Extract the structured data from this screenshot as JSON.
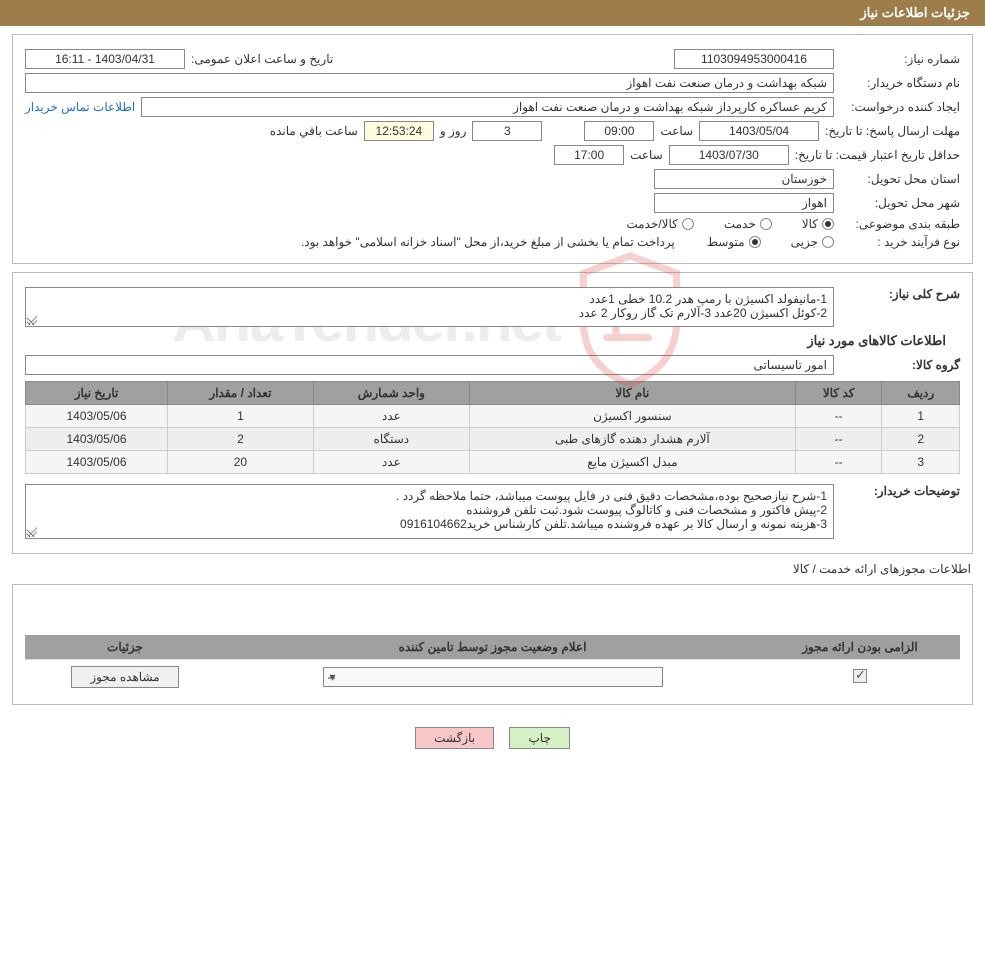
{
  "header": {
    "title": "جزئیات اطلاعات نیاز"
  },
  "info": {
    "need_no_label": "شماره نیاز:",
    "need_no": "1103094953000416",
    "announce_label": "تاریخ و ساعت اعلان عمومی:",
    "announce_val": "1403/04/31 - 16:11",
    "buyer_org_label": "نام دستگاه خریدار:",
    "buyer_org": "شبکه بهداشت و درمان صنعت نفت اهواز",
    "requester_label": "ایجاد کننده درخواست:",
    "requester": "کریم عساکره کارپرداز شبکه بهداشت و درمان صنعت نفت اهواز",
    "contact_link": "اطلاعات تماس خریدار",
    "deadline_label": "مهلت ارسال پاسخ: تا تاریخ:",
    "deadline_date": "1403/05/04",
    "time_label": "ساعت",
    "deadline_time": "09:00",
    "days_val": "3",
    "days_label": "روز و",
    "countdown": "12:53:24",
    "remaining_label": "ساعت باقي مانده",
    "validity_label": "حداقل تاریخ اعتبار قیمت: تا تاریخ:",
    "validity_date": "1403/07/30",
    "validity_time": "17:00",
    "province_label": "استان محل تحویل:",
    "province": "خوزستان",
    "city_label": "شهر محل تحویل:",
    "city": "اهواز",
    "category_label": "طبقه بندی موضوعی:",
    "cat_goods": "کالا",
    "cat_service": "خدمت",
    "cat_both": "کالا/خدمت",
    "ptype_label": "نوع فرآیند خرید :",
    "ptype_minor": "جزیی",
    "ptype_medium": "متوسط",
    "payment_note": "پرداخت تمام یا بخشی از مبلغ خرید،از محل \"اسناد خزانه اسلامی\" خواهد بود."
  },
  "needs": {
    "desc_label": "شرح کلی نیاز:",
    "desc_text": "1-مانیفولد اکسیژن با رمپ هدر 10.2 خطی     1عدد\n2-کوئل اکسیژن     20عدد              3-آلارم تک گاز روکار 2 عدد",
    "items_header": "اطلاعات کالاهای مورد نیاز",
    "group_label": "گروه کالا:",
    "group_val": "امور تاسیساتی",
    "table": {
      "cols": [
        "ردیف",
        "کد کالا",
        "نام کالا",
        "واحد شمارش",
        "تعداد / مقدار",
        "تاریخ نیاز"
      ],
      "rows": [
        [
          "1",
          "--",
          "سنسور اکسیژن",
          "عدد",
          "1",
          "1403/05/06"
        ],
        [
          "2",
          "--",
          "آلارم هشدار دهنده گازهای طبی",
          "دستگاه",
          "2",
          "1403/05/06"
        ],
        [
          "3",
          "--",
          "مبدل اکسیژن مایع",
          "عدد",
          "20",
          "1403/05/06"
        ]
      ]
    },
    "buyer_notes_label": "توضیحات خریدار:",
    "buyer_notes": "1-شرح نیازصحیح بوده،مشخصات دقیق فنی در فایل پیوست میباشد، حتما ملاحظه گردد .\n2-پیش فاکتور و مشخصات فنی و کاتالوگ پیوست شود.ثبت تلفن فروشنده\n3-هزینه نمونه و ارسال کالا بر عهده فروشنده میباشد.تلفن کارشناس خرید0916104662"
  },
  "license": {
    "header": "اطلاعات مجوزهای ارائه خدمت / کالا",
    "cols": [
      "الزامی بودن ارائه مجوز",
      "اعلام وضعیت مجوز توسط تامین کننده",
      "جزئیات"
    ],
    "select_val": "--",
    "view_btn": "مشاهده مجوز"
  },
  "footer": {
    "print": "چاپ",
    "back": "بازگشت"
  },
  "colors": {
    "header_bg": "#9d7d4a",
    "th_bg": "#a0a0a0",
    "btn_print": "#d4f0c4",
    "btn_back": "#f8c8c8",
    "link": "#1a73c8"
  }
}
